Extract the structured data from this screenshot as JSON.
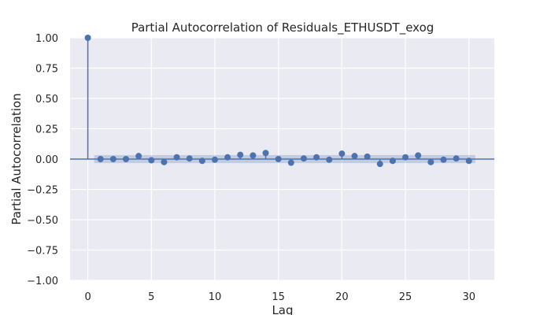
{
  "chart_data": {
    "type": "scatter",
    "subtype": "stem",
    "title": "Partial Autocorrelation of Residuals_ETHUSDT_exog",
    "xlabel": "Lag",
    "ylabel": "Partial Autocorrelation",
    "xlim": [
      -1.4,
      32
    ],
    "ylim": [
      -1.0,
      1.0
    ],
    "x_ticks": [
      0,
      5,
      10,
      15,
      20,
      25,
      30
    ],
    "y_ticks": [
      -1.0,
      -0.75,
      -0.5,
      -0.25,
      0.0,
      0.25,
      0.5,
      0.75,
      1.0
    ],
    "x_tick_labels": [
      "0",
      "5",
      "10",
      "15",
      "20",
      "25",
      "30"
    ],
    "y_tick_labels": [
      "−1.00",
      "−0.75",
      "−0.50",
      "−0.25",
      "0.00",
      "0.25",
      "0.50",
      "0.75",
      "1.00"
    ],
    "grid": true,
    "confidence_band": {
      "x_range": [
        0.5,
        30.5
      ],
      "lower": -0.033,
      "upper": 0.033
    },
    "x": [
      0,
      1,
      2,
      3,
      4,
      5,
      6,
      7,
      8,
      9,
      10,
      11,
      12,
      13,
      14,
      15,
      16,
      17,
      18,
      19,
      20,
      21,
      22,
      23,
      24,
      25,
      26,
      27,
      28,
      29,
      30
    ],
    "values": [
      1.0,
      0.0,
      0.0,
      0.0,
      0.025,
      -0.01,
      -0.025,
      0.015,
      0.005,
      -0.015,
      -0.005,
      0.015,
      0.035,
      0.03,
      0.05,
      0.0,
      -0.03,
      0.005,
      0.015,
      -0.005,
      0.045,
      0.025,
      0.02,
      -0.04,
      -0.015,
      0.015,
      0.03,
      -0.025,
      -0.005,
      0.005,
      -0.015
    ]
  },
  "colors": {
    "plot_bg": "#eaeaf2",
    "grid": "#ffffff",
    "series": "#4c72b0",
    "band": "#4c72b0",
    "text": "#262626"
  }
}
